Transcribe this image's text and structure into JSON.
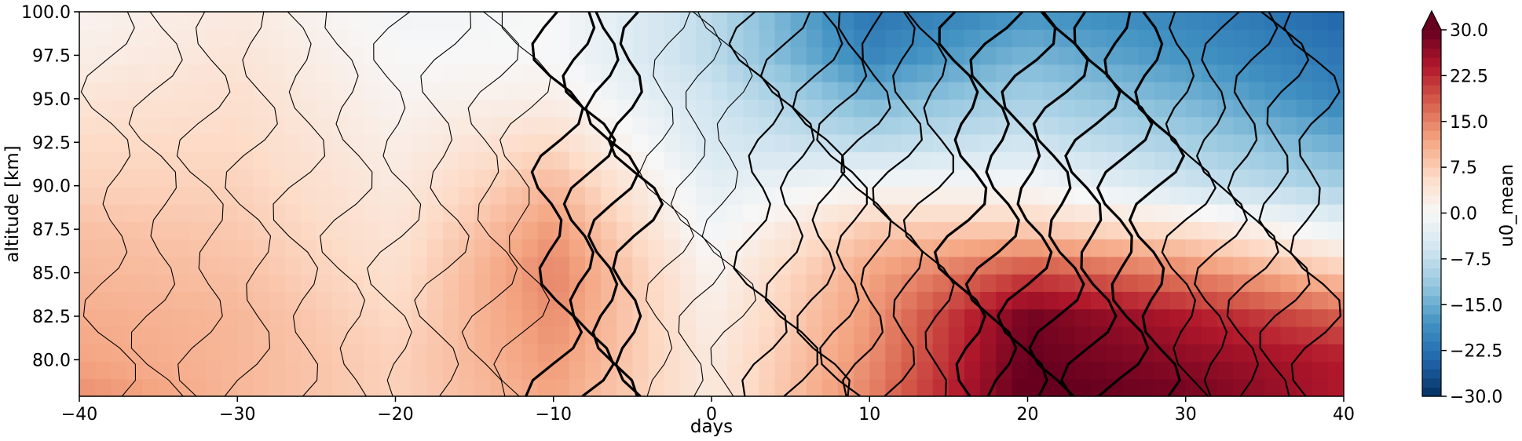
{
  "chart_data": {
    "type": "heatmap",
    "title": "",
    "xlabel": "days",
    "ylabel": "altitude [km]",
    "xlim": [
      -40,
      40
    ],
    "ylim": [
      77.9,
      100.0
    ],
    "x_ticks": [
      -40,
      -30,
      -20,
      -10,
      0,
      10,
      20,
      30,
      40
    ],
    "x_tick_labels": [
      "−40",
      "−30",
      "−20",
      "−10",
      "0",
      "10",
      "20",
      "30",
      "40"
    ],
    "y_ticks": [
      80.0,
      82.5,
      85.0,
      87.5,
      90.0,
      92.5,
      95.0,
      97.5,
      100.0
    ],
    "y_tick_labels": [
      "80.0",
      "82.5",
      "85.0",
      "87.5",
      "90.0",
      "92.5",
      "95.0",
      "97.5",
      "100.0"
    ],
    "colorbar": {
      "label": "u0_mean",
      "colormap": "RdBu_r",
      "range": [
        -30,
        30
      ],
      "extend": "max",
      "ticks": [
        -30,
        -22.5,
        -15,
        -7.5,
        0,
        7.5,
        15,
        22.5,
        30
      ],
      "tick_labels": [
        "−30.0",
        "−22.5",
        "−15.0",
        "−7.5",
        "0.0",
        "7.5",
        "15.0",
        "22.5",
        "30.0"
      ],
      "colors": [
        "#053061",
        "#2166ac",
        "#4393c3",
        "#92c5de",
        "#d1e5f0",
        "#f7f7f7",
        "#fddbc7",
        "#f4a582",
        "#d6604d",
        "#b2182b",
        "#67001f"
      ]
    },
    "field_u0_mean": {
      "x": [
        -40,
        -30,
        -20,
        -10,
        0,
        10,
        20,
        30,
        40
      ],
      "y": [
        78,
        80,
        82.5,
        85,
        87.5,
        90,
        92.5,
        95,
        97.5,
        100
      ],
      "z": [
        [
          14,
          10,
          7,
          12,
          3,
          15,
          31,
          29,
          24
        ],
        [
          12,
          10,
          7,
          13,
          3,
          14,
          30,
          27,
          24
        ],
        [
          11,
          10,
          6,
          14,
          2,
          13,
          29,
          24,
          18
        ],
        [
          10,
          9,
          5,
          15,
          1,
          12,
          20,
          15,
          8
        ],
        [
          9,
          8,
          4,
          13,
          -1,
          8,
          8,
          5,
          -2
        ],
        [
          7,
          7,
          3,
          10,
          -3,
          0,
          0,
          -6,
          -10
        ],
        [
          6,
          6,
          2,
          6,
          -5,
          -8,
          -6,
          -10,
          -15
        ],
        [
          4,
          5,
          1,
          2,
          -6,
          -14,
          -10,
          -14,
          -20
        ],
        [
          2,
          4,
          0,
          0,
          -8,
          -20,
          -14,
          -18,
          -22
        ],
        [
          1,
          3,
          -1,
          0,
          -8,
          -22,
          -18,
          -20,
          -24
        ]
      ]
    },
    "contours": {
      "color": "#000000",
      "description_note": "black contour lines of a second field overlaid; thicker lines for larger magnitude"
    }
  }
}
